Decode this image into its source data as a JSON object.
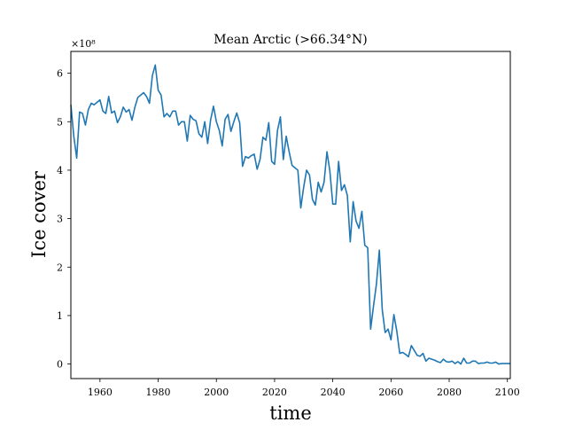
{
  "chart_data": {
    "type": "line",
    "title": "Mean Arctic (>66.34°N)",
    "xlabel": "time",
    "ylabel": "Ice cover",
    "y_offset_label": "×10⁸",
    "xlim": [
      1950,
      2101
    ],
    "ylim": [
      -0.3,
      6.45
    ],
    "xticks": [
      1960,
      1980,
      2000,
      2020,
      2040,
      2060,
      2080,
      2100
    ],
    "yticks": [
      0,
      1,
      2,
      3,
      4,
      5,
      6
    ],
    "grid": false,
    "series": [
      {
        "color": "#1f77b4",
        "x": [
          1950,
          1951,
          1952,
          1953,
          1954,
          1955,
          1956,
          1957,
          1958,
          1959,
          1960,
          1961,
          1962,
          1963,
          1964,
          1965,
          1966,
          1967,
          1968,
          1969,
          1970,
          1971,
          1972,
          1973,
          1974,
          1975,
          1976,
          1977,
          1978,
          1979,
          1980,
          1981,
          1982,
          1983,
          1984,
          1985,
          1986,
          1987,
          1988,
          1989,
          1990,
          1991,
          1992,
          1993,
          1994,
          1995,
          1996,
          1997,
          1998,
          1999,
          2000,
          2001,
          2002,
          2003,
          2004,
          2005,
          2006,
          2007,
          2008,
          2009,
          2010,
          2011,
          2012,
          2013,
          2014,
          2015,
          2016,
          2017,
          2018,
          2019,
          2020,
          2021,
          2022,
          2023,
          2024,
          2025,
          2026,
          2027,
          2028,
          2029,
          2030,
          2031,
          2032,
          2033,
          2034,
          2035,
          2036,
          2037,
          2038,
          2039,
          2040,
          2041,
          2042,
          2043,
          2044,
          2045,
          2046,
          2047,
          2048,
          2049,
          2050,
          2051,
          2052,
          2053,
          2054,
          2055,
          2056,
          2057,
          2058,
          2059,
          2060,
          2061,
          2062,
          2063,
          2064,
          2065,
          2066,
          2067,
          2068,
          2069,
          2070,
          2071,
          2072,
          2073,
          2074,
          2075,
          2076,
          2077,
          2078,
          2079,
          2080,
          2081,
          2082,
          2083,
          2084,
          2085,
          2086,
          2087,
          2088,
          2089,
          2090,
          2091,
          2092,
          2093,
          2094,
          2095,
          2096,
          2097,
          2098,
          2099,
          2100,
          2101
        ],
        "y": [
          5.35,
          4.7,
          4.25,
          5.2,
          5.17,
          4.93,
          5.25,
          5.38,
          5.35,
          5.4,
          5.45,
          5.22,
          5.17,
          5.52,
          5.18,
          5.22,
          4.98,
          5.1,
          5.3,
          5.2,
          5.25,
          5.03,
          5.3,
          5.5,
          5.55,
          5.6,
          5.52,
          5.38,
          5.95,
          6.17,
          5.65,
          5.55,
          5.1,
          5.17,
          5.1,
          5.22,
          5.22,
          4.93,
          5.0,
          5.0,
          4.6,
          5.13,
          5.05,
          5.02,
          4.75,
          4.68,
          5.0,
          4.55,
          5.03,
          5.32,
          5.0,
          4.82,
          4.5,
          5.05,
          5.15,
          4.8,
          5.0,
          5.18,
          4.98,
          4.08,
          4.28,
          4.25,
          4.3,
          4.33,
          4.02,
          4.22,
          4.68,
          4.62,
          4.98,
          4.18,
          4.12,
          4.82,
          5.1,
          4.22,
          4.7,
          4.38,
          4.1,
          4.05,
          4.0,
          3.22,
          3.65,
          4.0,
          3.9,
          3.4,
          3.28,
          3.75,
          3.55,
          3.75,
          4.38,
          3.98,
          3.3,
          3.3,
          4.18,
          3.58,
          3.7,
          3.48,
          2.52,
          3.35,
          2.95,
          2.8,
          3.15,
          2.45,
          2.4,
          0.72,
          1.2,
          1.65,
          2.35,
          1.12,
          0.65,
          0.72,
          0.5,
          1.02,
          0.68,
          0.22,
          0.24,
          0.2,
          0.15,
          0.38,
          0.28,
          0.18,
          0.16,
          0.22,
          0.06,
          0.12,
          0.1,
          0.08,
          0.05,
          0.03,
          0.1,
          0.05,
          0.04,
          0.06,
          0.01,
          0.05,
          0.0,
          0.12,
          0.02,
          0.02,
          0.06,
          0.06,
          0.01,
          0.02,
          0.02,
          0.04,
          0.02,
          0.02,
          0.04,
          0.0,
          0.01,
          0.01,
          0.01,
          0.01
        ]
      }
    ]
  }
}
